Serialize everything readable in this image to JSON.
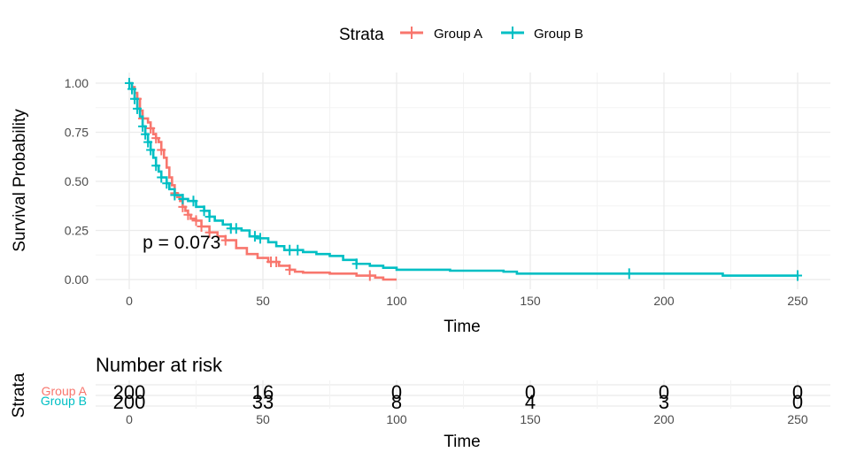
{
  "colors": {
    "group_a": "#F8766D",
    "group_b": "#00BFC4",
    "grid_major": "#EBEBEB",
    "grid_minor": "#F3F3F3",
    "axis_text": "#4D4D4D"
  },
  "legend": {
    "title": "Strata",
    "placement": "top",
    "items": [
      "Group A",
      "Group B"
    ]
  },
  "chart_data": [
    {
      "type": "line",
      "subtype": "kaplan-meier",
      "xlabel": "Time",
      "ylabel": "Survival Probability",
      "xlim": [
        0,
        250
      ],
      "ylim": [
        0,
        1
      ],
      "x_ticks": [
        "0",
        "50",
        "100",
        "150",
        "200",
        "250"
      ],
      "y_ticks": [
        "0.00",
        "0.25",
        "0.50",
        "0.75",
        "1.00"
      ],
      "grid": true,
      "annotation": {
        "text": "p = 0.073",
        "x": 5,
        "y": 0.19
      },
      "series": [
        {
          "name": "Group A",
          "steps": [
            [
              0,
              1.0
            ],
            [
              1,
              0.98
            ],
            [
              2,
              0.95
            ],
            [
              3,
              0.92
            ],
            [
              4,
              0.86
            ],
            [
              5,
              0.82
            ],
            [
              7,
              0.8
            ],
            [
              8,
              0.77
            ],
            [
              9,
              0.74
            ],
            [
              10,
              0.72
            ],
            [
              11,
              0.7
            ],
            [
              12,
              0.66
            ],
            [
              13,
              0.62
            ],
            [
              14,
              0.57
            ],
            [
              15,
              0.52
            ],
            [
              16,
              0.48
            ],
            [
              17,
              0.44
            ],
            [
              18,
              0.42
            ],
            [
              19,
              0.4
            ],
            [
              20,
              0.37
            ],
            [
              21,
              0.35
            ],
            [
              22,
              0.33
            ],
            [
              23,
              0.31
            ],
            [
              25,
              0.3
            ],
            [
              27,
              0.27
            ],
            [
              30,
              0.24
            ],
            [
              33,
              0.22
            ],
            [
              36,
              0.2
            ],
            [
              40,
              0.16
            ],
            [
              44,
              0.13
            ],
            [
              48,
              0.11
            ],
            [
              52,
              0.09
            ],
            [
              56,
              0.07
            ],
            [
              60,
              0.05
            ],
            [
              62,
              0.04
            ],
            [
              65,
              0.035
            ],
            [
              75,
              0.03
            ],
            [
              85,
              0.02
            ],
            [
              92,
              0.01
            ],
            [
              95,
              0.0
            ],
            [
              100,
              0.0
            ]
          ],
          "censor_times": [
            3,
            5,
            8,
            10,
            12,
            17,
            20,
            22,
            25,
            27,
            30,
            36,
            53,
            55,
            60,
            90
          ]
        },
        {
          "name": "Group B",
          "steps": [
            [
              0,
              1.0
            ],
            [
              1,
              0.97
            ],
            [
              2,
              0.92
            ],
            [
              3,
              0.87
            ],
            [
              4,
              0.83
            ],
            [
              5,
              0.78
            ],
            [
              6,
              0.74
            ],
            [
              7,
              0.7
            ],
            [
              8,
              0.66
            ],
            [
              9,
              0.62
            ],
            [
              10,
              0.58
            ],
            [
              11,
              0.55
            ],
            [
              12,
              0.52
            ],
            [
              14,
              0.49
            ],
            [
              15,
              0.46
            ],
            [
              17,
              0.43
            ],
            [
              20,
              0.41
            ],
            [
              22,
              0.4
            ],
            [
              25,
              0.37
            ],
            [
              28,
              0.35
            ],
            [
              30,
              0.32
            ],
            [
              32,
              0.3
            ],
            [
              35,
              0.28
            ],
            [
              38,
              0.26
            ],
            [
              42,
              0.25
            ],
            [
              45,
              0.22
            ],
            [
              48,
              0.21
            ],
            [
              52,
              0.19
            ],
            [
              55,
              0.17
            ],
            [
              58,
              0.15
            ],
            [
              65,
              0.14
            ],
            [
              70,
              0.13
            ],
            [
              75,
              0.12
            ],
            [
              80,
              0.1
            ],
            [
              85,
              0.08
            ],
            [
              90,
              0.07
            ],
            [
              95,
              0.06
            ],
            [
              100,
              0.05
            ],
            [
              120,
              0.045
            ],
            [
              140,
              0.04
            ],
            [
              145,
              0.03
            ],
            [
              180,
              0.03
            ],
            [
              222,
              0.02
            ],
            [
              250,
              0.02
            ]
          ],
          "censor_times": [
            0,
            1,
            2,
            3,
            5,
            6,
            7,
            8,
            10,
            12,
            14,
            17,
            20,
            24,
            28,
            30,
            38,
            40,
            47,
            49,
            60,
            63,
            85,
            187,
            250
          ]
        }
      ]
    },
    {
      "type": "table",
      "title": "Number at risk",
      "ylabel": "Strata",
      "xlabel": "Time",
      "times": [
        "0",
        "50",
        "100",
        "150",
        "200",
        "250"
      ],
      "rows": [
        {
          "label": "Group A",
          "values": [
            "200",
            "16",
            "0",
            "0",
            "0",
            "0"
          ]
        },
        {
          "label": "Group B",
          "values": [
            "200",
            "33",
            "8",
            "4",
            "3",
            "0"
          ]
        }
      ]
    }
  ]
}
